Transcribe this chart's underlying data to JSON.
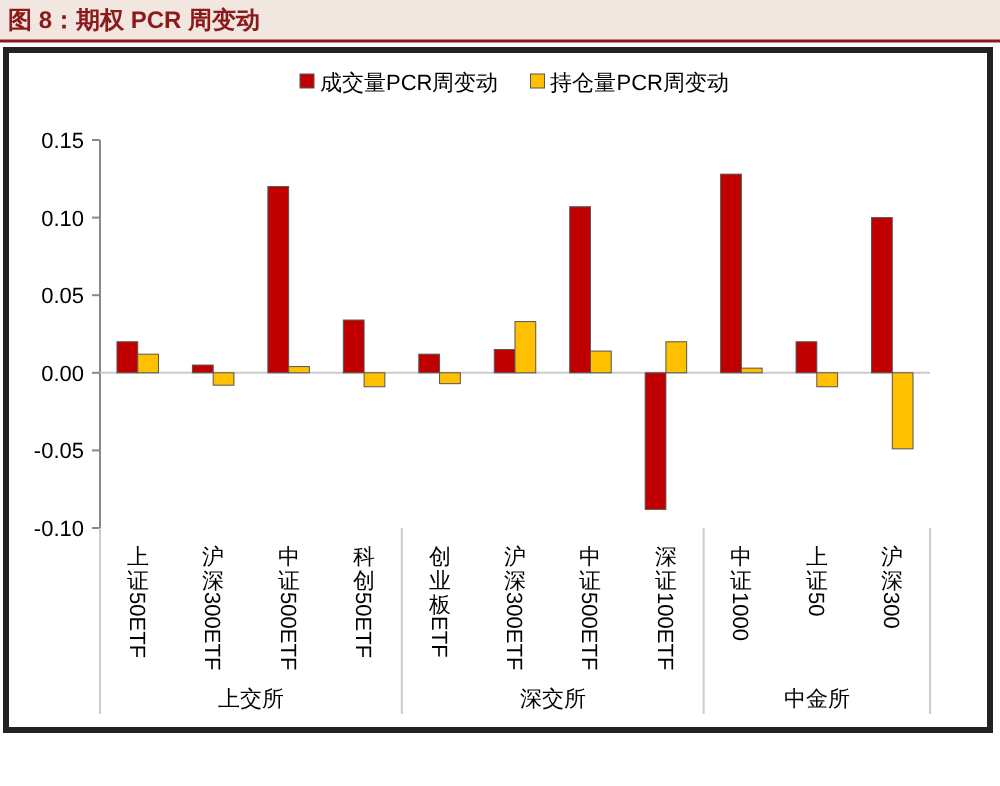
{
  "chart_data": {
    "type": "bar",
    "title": "图 8：期权 PCR 周变动",
    "categories": [
      "上证50ETF",
      "沪深300ETF",
      "中证500ETF",
      "科创50ETF",
      "创业板ETF",
      "沪深300ETF",
      "中证500ETF",
      "深证100ETF",
      "中证1000",
      "上证50",
      "沪深300"
    ],
    "series": [
      {
        "name": "成交量PCR周变动",
        "color": "#c00000",
        "values": [
          0.02,
          0.005,
          0.12,
          0.034,
          0.012,
          0.015,
          0.107,
          -0.088,
          0.128,
          0.02,
          0.1
        ]
      },
      {
        "name": "持仓量PCR周变动",
        "color": "#ffc000",
        "values": [
          0.012,
          -0.008,
          0.004,
          -0.009,
          -0.007,
          0.033,
          0.014,
          0.02,
          0.003,
          -0.009,
          -0.049
        ]
      }
    ],
    "ylim": [
      -0.1,
      0.15
    ],
    "yticks": [
      {
        "value": -0.1,
        "label": "-0.10"
      },
      {
        "value": -0.05,
        "label": "-0.05"
      },
      {
        "value": 0,
        "label": "0.00"
      },
      {
        "value": 0.05,
        "label": "0.05"
      },
      {
        "value": 0.1,
        "label": "0.10"
      },
      {
        "value": 0.15,
        "label": "0.15"
      }
    ],
    "annotations": [
      "上交所",
      "深交所",
      "中金所"
    ],
    "ref_lines": [
      {
        "axis": "y",
        "value": 0,
        "color": "#cccccc"
      }
    ],
    "legend": "top",
    "grid": false
  }
}
